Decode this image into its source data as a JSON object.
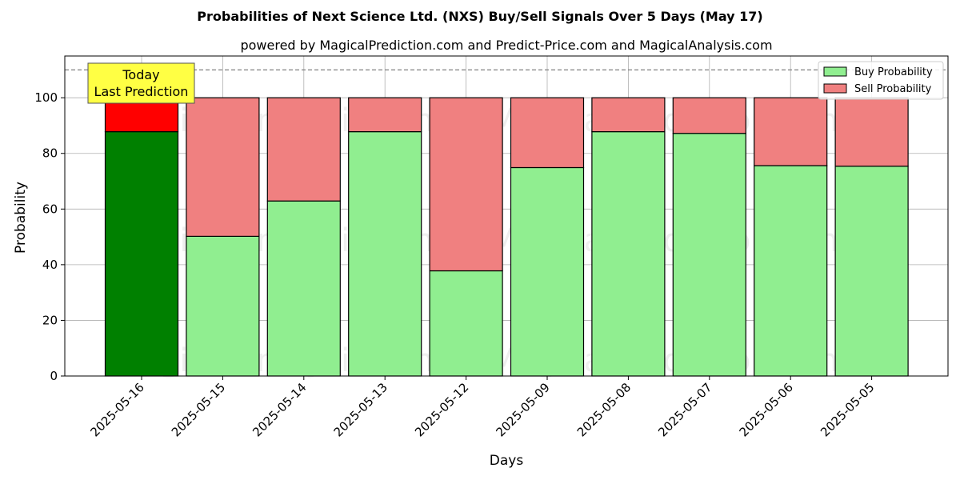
{
  "chart_data": {
    "type": "bar",
    "stacked": true,
    "title": "Probabilities of Next Science Ltd. (NXS) Buy/Sell Signals Over 5 Days (May 17)",
    "subtitle": "powered by MagicalPrediction.com and Predict-Price.com and MagicalAnalysis.com",
    "xlabel": "Days",
    "ylabel": "Probability",
    "ylim": [
      0,
      115
    ],
    "yticks": [
      0,
      20,
      40,
      60,
      80,
      100
    ],
    "grid": true,
    "categories": [
      "2025-05-16",
      "2025-05-15",
      "2025-05-14",
      "2025-05-13",
      "2025-05-12",
      "2025-05-09",
      "2025-05-08",
      "2025-05-07",
      "2025-05-06",
      "2025-05-05"
    ],
    "series": [
      {
        "name": "Buy Probability",
        "values": [
          87.8,
          50.2,
          62.9,
          87.8,
          37.8,
          74.9,
          87.8,
          87.2,
          75.6,
          75.4
        ],
        "color": "#90ee90",
        "highlight_color": "#008000"
      },
      {
        "name": "Sell Probability",
        "values": [
          12.2,
          49.8,
          37.1,
          12.2,
          62.2,
          25.1,
          12.2,
          12.8,
          24.4,
          24.6
        ],
        "color": "#f08080",
        "highlight_color": "#ff0000"
      }
    ],
    "highlight_index": 0,
    "reference_line": {
      "y": 110,
      "style": "dashed"
    },
    "legend_position": "top-right",
    "annotation": {
      "lines": [
        "Today",
        "Last Prediction"
      ],
      "background": "#ffff44"
    },
    "watermarks": [
      "MagicalAnalysis.com",
      "MagicalPrediction.com"
    ]
  }
}
